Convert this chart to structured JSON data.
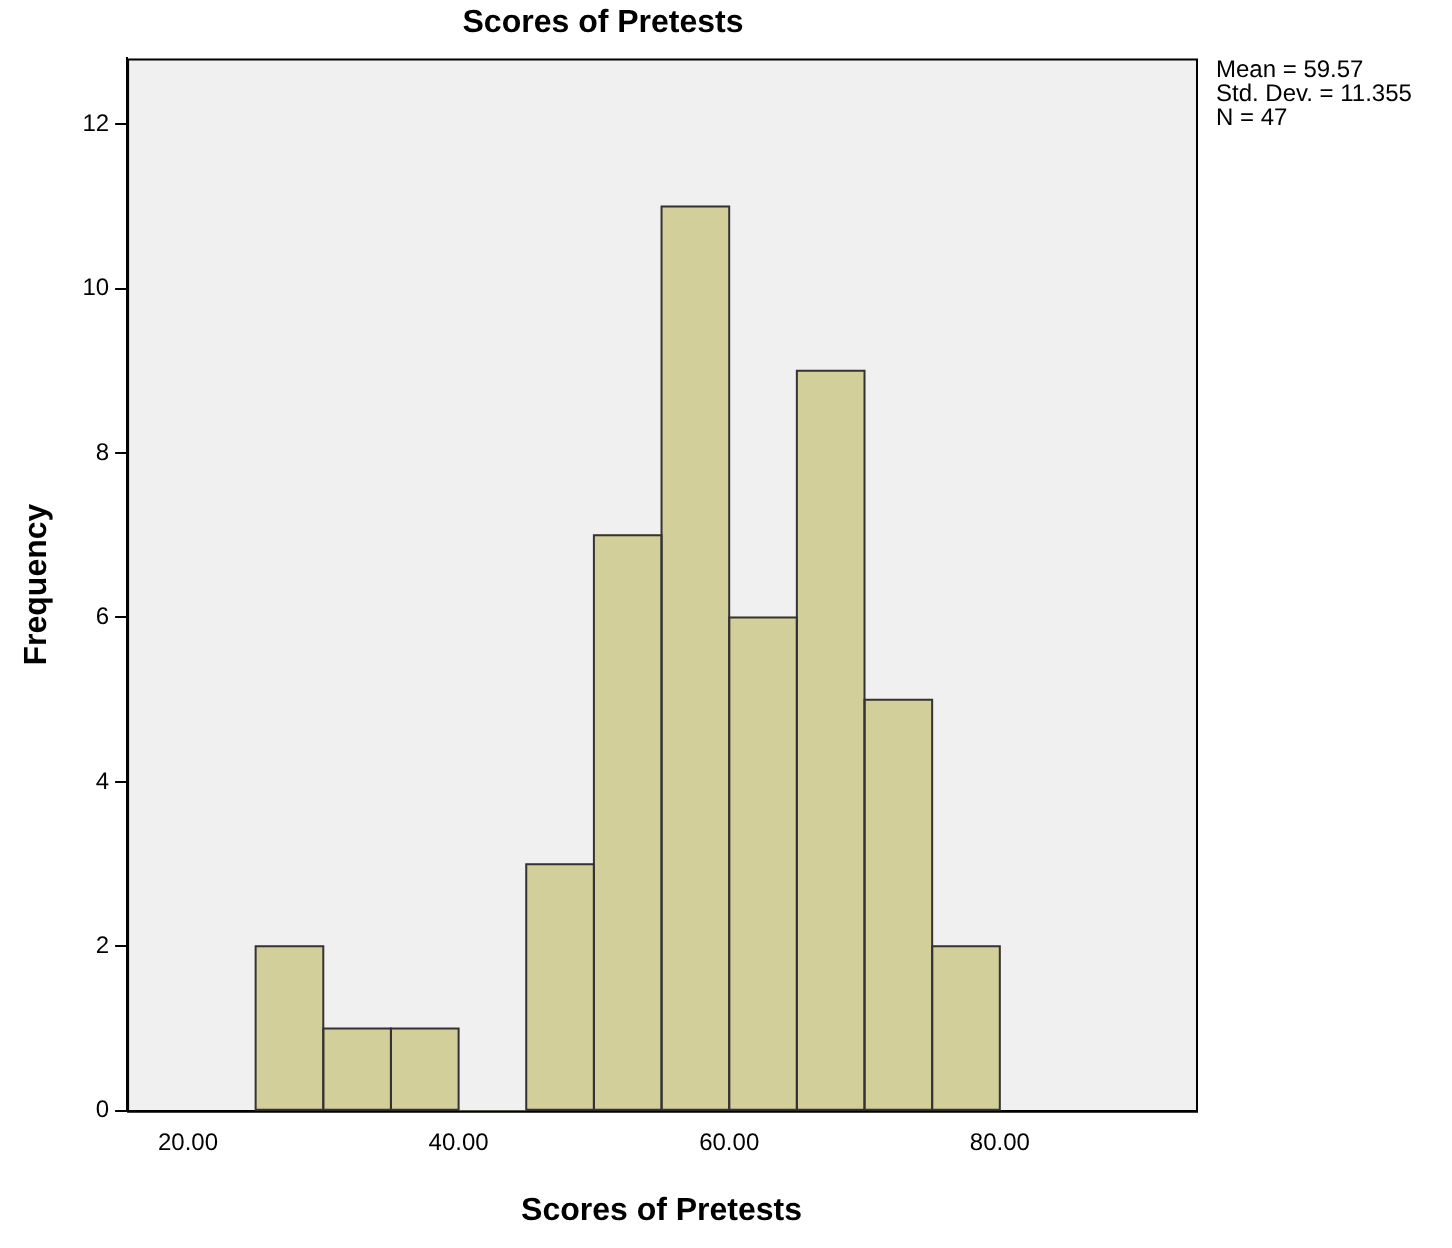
{
  "chart_data": {
    "type": "histogram",
    "title": "Scores of Pretests",
    "xlabel": "Scores of Pretests",
    "ylabel": "Frequency",
    "bins": [
      25,
      30,
      35,
      40,
      45,
      50,
      55,
      60,
      65,
      70,
      75,
      80
    ],
    "values": [
      2,
      1,
      1,
      0,
      3,
      7,
      11,
      6,
      9,
      5,
      2
    ],
    "color": "#d3cf9b",
    "xlim": [
      15.5,
      94.5
    ],
    "xticks": [
      {
        "value": 20,
        "label": "20.00"
      },
      {
        "value": 40,
        "label": "40.00"
      },
      {
        "value": 60,
        "label": "60.00"
      },
      {
        "value": 80,
        "label": "80.00"
      }
    ],
    "ylim": [
      0,
      12.8
    ],
    "yticks": [
      0,
      2,
      4,
      6,
      8,
      10,
      12
    ],
    "grid": false,
    "legend": false,
    "annotations": [
      "Mean = 59.57",
      "Std. Dev. = 11.355",
      "N = 47"
    ]
  }
}
